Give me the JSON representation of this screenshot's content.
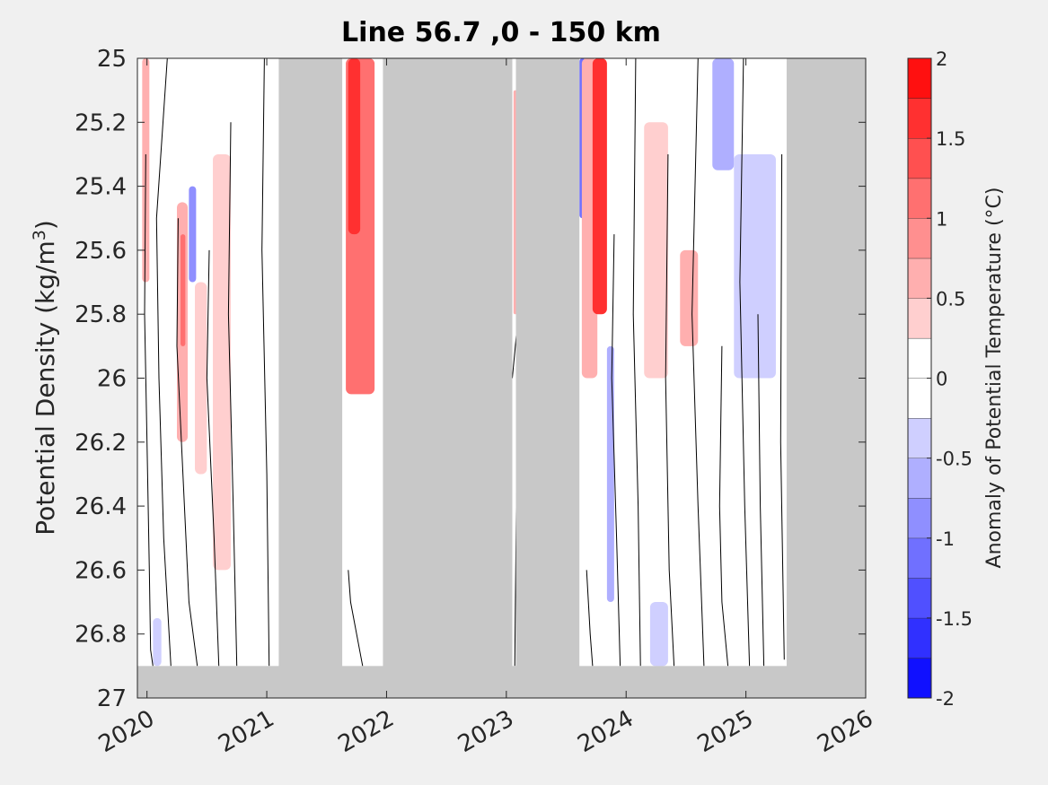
{
  "chart_data": {
    "type": "heatmap",
    "title": "Line 56.7 ,0 - 150 km",
    "xlabel": "",
    "ylabel": "Potential Density (kg/m",
    "ylabel_sup": "3",
    "ylabel_close": ")",
    "colorbar_label": "Anomaly of Potential Temperature (°C)",
    "xlim": [
      2019.92,
      2026.0
    ],
    "ylim": [
      25.0,
      27.0
    ],
    "y_reversed": true,
    "xticks": [
      2020,
      2021,
      2022,
      2023,
      2024,
      2025,
      2026
    ],
    "xtick_labels": [
      "2020",
      "2021",
      "2022",
      "2023",
      "2024",
      "2025",
      "2026"
    ],
    "yticks": [
      25,
      25.2,
      25.4,
      25.6,
      25.8,
      26,
      26.2,
      26.4,
      26.6,
      26.8,
      27
    ],
    "ytick_labels": [
      "25",
      "25.2",
      "25.4",
      "25.6",
      "25.8",
      "26",
      "26.2",
      "26.4",
      "26.6",
      "26.8",
      "27"
    ],
    "colorbar": {
      "range": [
        -2,
        2
      ],
      "ticks": [
        -2,
        -1.5,
        -1,
        -0.5,
        0,
        0.5,
        1,
        1.5,
        2
      ],
      "tick_labels": [
        "-2",
        "-1.5",
        "-1",
        "-0.5",
        "0",
        "0.5",
        "1",
        "1.5",
        "2"
      ],
      "levels": [
        -2,
        -1.75,
        -1.5,
        -1.25,
        -1,
        -0.75,
        -0.5,
        -0.25,
        0,
        0.25,
        0.5,
        0.75,
        1,
        1.25,
        1.5,
        1.75,
        2
      ],
      "cold_color": "#0000ff",
      "warm_color": "#ff0000",
      "neutral_color": "#ffffff"
    },
    "no_data_color": "#c8c8c8",
    "no_data_spans": [
      {
        "x": [
          2021.1,
          2021.63
        ],
        "y": [
          25.0,
          27.0
        ]
      },
      {
        "x": [
          2021.97,
          2023.05
        ],
        "y": [
          25.0,
          27.0
        ]
      },
      {
        "x": [
          2023.08,
          2023.61
        ],
        "y": [
          25.0,
          27.0
        ]
      },
      {
        "x": [
          2025.34,
          2026.0
        ],
        "y": [
          25.0,
          27.0
        ]
      },
      {
        "x": [
          2019.92,
          2026.0
        ],
        "y": [
          26.9,
          27.0
        ]
      }
    ],
    "anomaly_patches": [
      {
        "x": [
          2019.96,
          2020.02
        ],
        "y": [
          25.0,
          25.7
        ],
        "value": 0.6
      },
      {
        "x": [
          2020.25,
          2020.34
        ],
        "y": [
          25.45,
          26.2
        ],
        "value": 0.7
      },
      {
        "x": [
          2020.28,
          2020.32
        ],
        "y": [
          25.55,
          25.9
        ],
        "value": 1.0
      },
      {
        "x": [
          2020.35,
          2020.41
        ],
        "y": [
          25.4,
          25.7
        ],
        "value": -0.8
      },
      {
        "x": [
          2020.4,
          2020.5
        ],
        "y": [
          25.7,
          26.3
        ],
        "value": 0.4
      },
      {
        "x": [
          2020.55,
          2020.7
        ],
        "y": [
          25.3,
          26.6
        ],
        "value": 0.3
      },
      {
        "x": [
          2020.05,
          2020.12
        ],
        "y": [
          26.75,
          26.9
        ],
        "value": -0.3
      },
      {
        "x": [
          2021.66,
          2021.9
        ],
        "y": [
          25.0,
          26.05
        ],
        "value": 1.2
      },
      {
        "x": [
          2021.68,
          2021.78
        ],
        "y": [
          25.0,
          25.55
        ],
        "value": 1.7
      },
      {
        "x": [
          2023.06,
          2023.09
        ],
        "y": [
          25.1,
          25.8
        ],
        "value": 0.5
      },
      {
        "x": [
          2023.61,
          2023.66
        ],
        "y": [
          25.0,
          25.5
        ],
        "value": -1.2
      },
      {
        "x": [
          2023.63,
          2023.76
        ],
        "y": [
          25.0,
          26.0
        ],
        "value": 0.6
      },
      {
        "x": [
          2023.72,
          2023.84
        ],
        "y": [
          25.0,
          25.8
        ],
        "value": 1.6
      },
      {
        "x": [
          2023.84,
          2023.9
        ],
        "y": [
          25.9,
          26.7
        ],
        "value": -0.6
      },
      {
        "x": [
          2024.15,
          2024.35
        ],
        "y": [
          25.2,
          26.0
        ],
        "value": 0.3
      },
      {
        "x": [
          2024.45,
          2024.6
        ],
        "y": [
          25.6,
          25.9
        ],
        "value": 0.5
      },
      {
        "x": [
          2024.72,
          2024.9
        ],
        "y": [
          25.0,
          25.35
        ],
        "value": -0.7
      },
      {
        "x": [
          2024.9,
          2025.25
        ],
        "y": [
          25.3,
          26.0
        ],
        "value": -0.3
      },
      {
        "x": [
          2024.2,
          2024.35
        ],
        "y": [
          26.7,
          26.9
        ],
        "value": -0.3
      }
    ],
    "contour_lines": [
      {
        "x": [
          2019.99,
          2019.98,
          2020.0,
          2020.02,
          2020.03,
          2020.05
        ],
        "y": [
          25.3,
          25.8,
          26.2,
          26.6,
          26.85,
          26.9
        ]
      },
      {
        "x": [
          2020.17,
          2020.08,
          2020.1,
          2020.14,
          2020.2
        ],
        "y": [
          25.0,
          25.5,
          26.0,
          26.5,
          26.9
        ]
      },
      {
        "x": [
          2020.26,
          2020.25,
          2020.3,
          2020.35,
          2020.42
        ],
        "y": [
          25.5,
          25.9,
          26.3,
          26.7,
          26.9
        ]
      },
      {
        "x": [
          2020.52,
          2020.5,
          2020.56,
          2020.6
        ],
        "y": [
          25.6,
          26.0,
          26.5,
          26.9
        ]
      },
      {
        "x": [
          2020.7,
          2020.68,
          2020.72,
          2020.75
        ],
        "y": [
          25.2,
          25.8,
          26.4,
          26.9
        ]
      },
      {
        "x": [
          2020.98,
          2020.96,
          2021.0,
          2021.02
        ],
        "y": [
          25.0,
          25.6,
          26.3,
          26.9
        ]
      },
      {
        "x": [
          2021.68,
          2021.7,
          2021.75,
          2021.8
        ],
        "y": [
          26.6,
          26.7,
          26.8,
          26.9
        ]
      },
      {
        "x": [
          2023.05,
          2023.1,
          2023.07
        ],
        "y": [
          26.0,
          25.8,
          26.9
        ]
      },
      {
        "x": [
          2023.67,
          2023.7,
          2023.72
        ],
        "y": [
          26.6,
          26.8,
          26.9
        ]
      },
      {
        "x": [
          2023.9,
          2023.88,
          2023.92,
          2023.95
        ],
        "y": [
          25.55,
          26.0,
          26.5,
          26.9
        ]
      },
      {
        "x": [
          2024.08,
          2024.06,
          2024.1,
          2024.12
        ],
        "y": [
          25.0,
          25.8,
          26.4,
          26.9
        ]
      },
      {
        "x": [
          2024.35,
          2024.33,
          2024.36,
          2024.4
        ],
        "y": [
          25.3,
          26.0,
          26.6,
          26.9
        ]
      },
      {
        "x": [
          2024.6,
          2024.55,
          2024.6,
          2024.65
        ],
        "y": [
          25.0,
          25.8,
          26.4,
          26.9
        ]
      },
      {
        "x": [
          2024.8,
          2024.78,
          2024.8,
          2024.85
        ],
        "y": [
          25.9,
          26.4,
          26.7,
          26.9
        ]
      },
      {
        "x": [
          2024.98,
          2024.95,
          2024.99,
          2025.03
        ],
        "y": [
          25.0,
          25.7,
          26.4,
          26.9
        ]
      },
      {
        "x": [
          2025.1,
          2025.12,
          2025.15
        ],
        "y": [
          25.8,
          26.4,
          26.9
        ]
      },
      {
        "x": [
          2025.3,
          2025.29,
          2025.32
        ],
        "y": [
          25.3,
          26.2,
          26.88
        ]
      }
    ]
  }
}
